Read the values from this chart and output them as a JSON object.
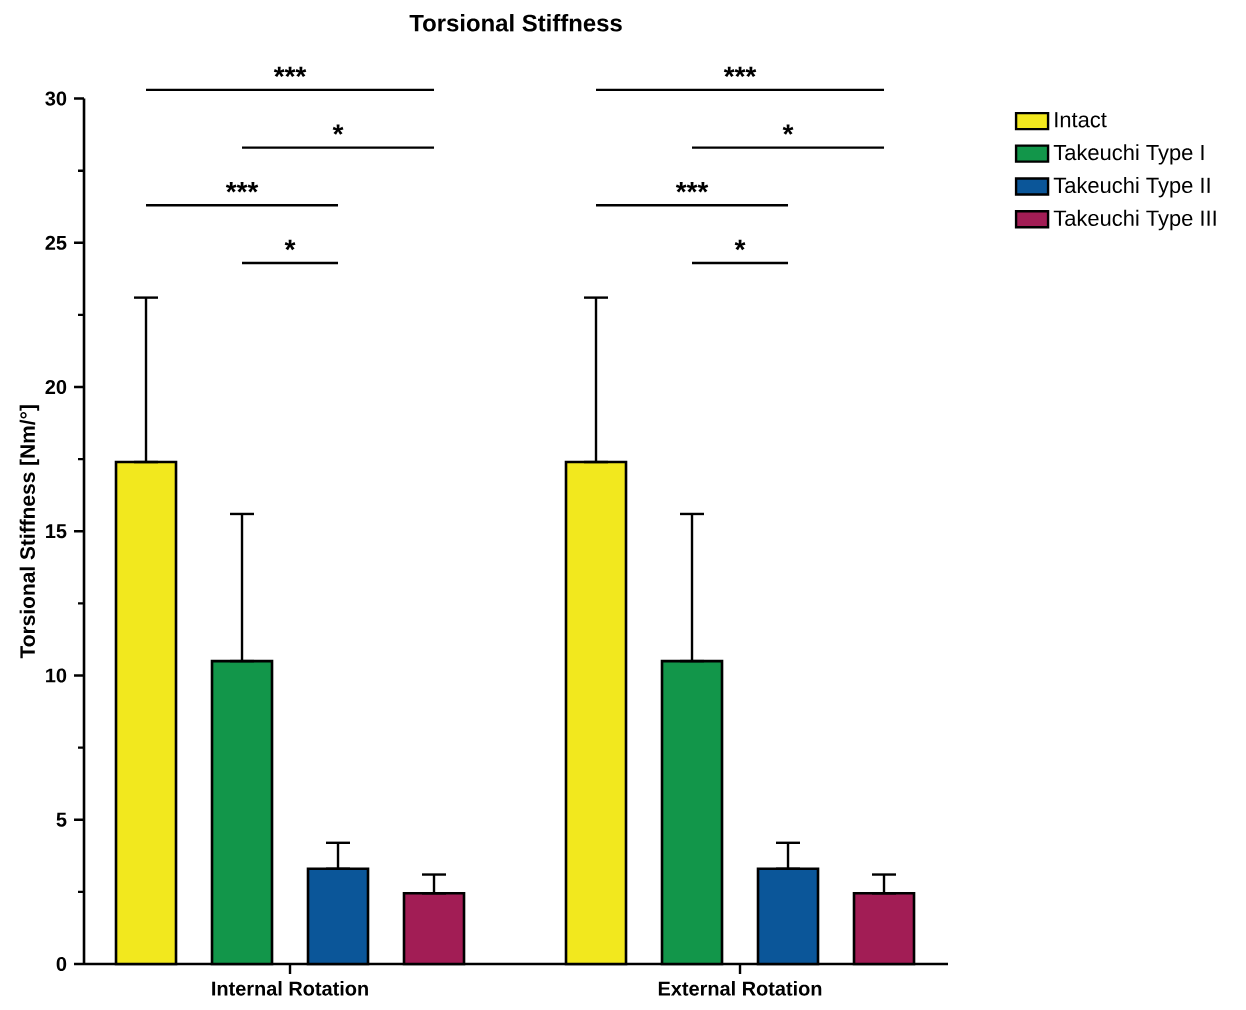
{
  "chart_data": {
    "type": "bar",
    "title": "Torsional Stiffness",
    "ylabel": "Torsional Stiffness [Nm/°]",
    "categories": [
      "Internal Rotation",
      "External Rotation"
    ],
    "series": [
      {
        "name": "Intact",
        "color": "#f2e81e",
        "values": [
          17.4,
          17.4
        ],
        "errors": [
          [
            17.4,
            23.1
          ],
          [
            17.4,
            23.1
          ]
        ]
      },
      {
        "name": "Takeuchi Type I",
        "color": "#12964a",
        "values": [
          10.5,
          10.5
        ],
        "errors": [
          [
            10.5,
            15.6
          ],
          [
            10.5,
            15.6
          ]
        ]
      },
      {
        "name": "Takeuchi Type II",
        "color": "#0b5699",
        "values": [
          3.3,
          3.3
        ],
        "errors": [
          [
            3.3,
            4.2
          ],
          [
            3.3,
            4.2
          ]
        ]
      },
      {
        "name": "Takeuchi Type III",
        "color": "#a21d55",
        "values": [
          2.45,
          2.45
        ],
        "errors": [
          [
            2.45,
            3.1
          ],
          [
            2.45,
            3.1
          ]
        ]
      }
    ],
    "ylim": [
      0,
      30
    ],
    "yticks": [
      0,
      5,
      10,
      15,
      20,
      25,
      30
    ],
    "grid": false,
    "legend": "right",
    "annotations": [
      "***",
      "*",
      "***",
      "*",
      "***",
      "*",
      "***",
      "*"
    ]
  }
}
